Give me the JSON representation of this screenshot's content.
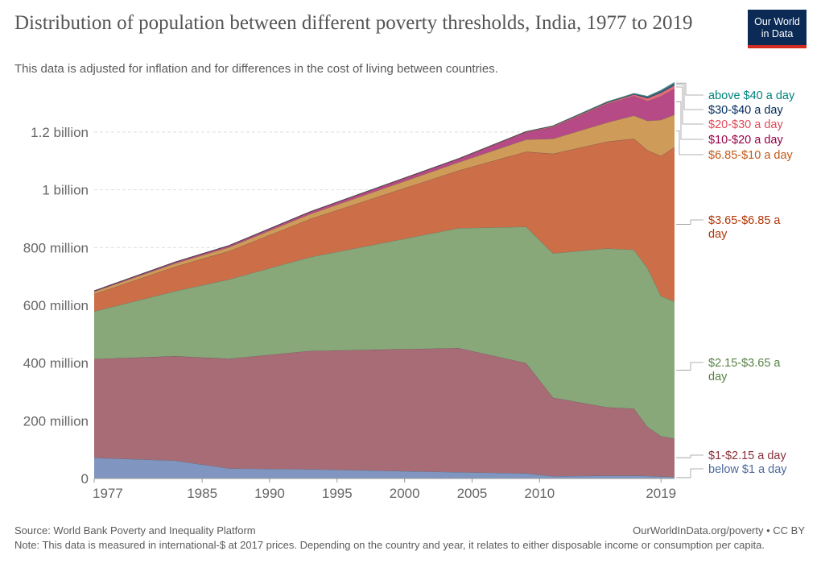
{
  "header": {
    "title": "Distribution of population between different poverty thresholds, India, 1977 to 2019",
    "subtitle": "This data is adjusted for inflation and for differences in the cost of living between countries.",
    "logo_line1": "Our World",
    "logo_line2": "in Data"
  },
  "footer": {
    "source": "Source: World Bank Poverty and Inequality Platform",
    "url": "OurWorldInData.org/poverty • CC BY",
    "note": "Note: This data is measured in international-$ at 2017 prices. Depending on the country and year, it relates to either disposable income or consumption per capita."
  },
  "chart_data": {
    "type": "area",
    "stacked": true,
    "x": [
      1977,
      1983,
      1987,
      1993,
      2004,
      2009,
      2011,
      2015,
      2017,
      2018,
      2019,
      2020
    ],
    "series": [
      {
        "name": "below $1 a day",
        "color": "#8096c0",
        "label_color": "#4c6a9c",
        "values": [
          72,
          62,
          35,
          32,
          22,
          18,
          8,
          10,
          10,
          9,
          7,
          6
        ]
      },
      {
        "name": "$1-$2.15 a day",
        "color": "#a86c76",
        "label_color": "#883039",
        "values": [
          342,
          362,
          380,
          410,
          430,
          382,
          272,
          237,
          232,
          170,
          140,
          132
        ]
      },
      {
        "name": "$2.15-$3.65 a day",
        "color": "#88a87a",
        "label_color": "#578145",
        "values": [
          165,
          225,
          275,
          325,
          415,
          472,
          500,
          550,
          550,
          550,
          485,
          475
        ]
      },
      {
        "name": "$3.65-$6.85 a day",
        "color": "#cc6e48",
        "label_color": "#b13507",
        "values": [
          60,
          85,
          98,
          132,
          200,
          260,
          345,
          370,
          385,
          408,
          485,
          535
        ]
      },
      {
        "name": "$6.85-$10 a day",
        "color": "#cf9b58",
        "label_color": "#c05917",
        "values": [
          8,
          11,
          13,
          17,
          28,
          42,
          52,
          66,
          80,
          102,
          125,
          112
        ]
      },
      {
        "name": "$10-$20 a day",
        "color": "#b64a86",
        "label_color": "#970046",
        "values": [
          3,
          5,
          6,
          8,
          12,
          25,
          40,
          64,
          68,
          68,
          82,
          90
        ]
      },
      {
        "name": "$20-$30 a day",
        "color": "#e36b7a",
        "label_color": "#e04b59",
        "values": [
          0,
          0,
          0,
          0,
          1,
          2,
          3,
          4,
          5,
          10,
          12,
          12
        ]
      },
      {
        "name": "$30-$40 a day",
        "color": "#2a4c7c",
        "label_color": "#00295b",
        "values": [
          0,
          0,
          0,
          0,
          0,
          1,
          1,
          2,
          2,
          4,
          5,
          5
        ]
      },
      {
        "name": "above $40 a day",
        "color": "#2c9d96",
        "label_color": "#00847e",
        "values": [
          0,
          0,
          0,
          0,
          0,
          0,
          1,
          2,
          2,
          3,
          4,
          5
        ]
      }
    ],
    "series_labels": [
      {
        "series": "above $40 a day",
        "lines": [
          "above $40 a day"
        ]
      },
      {
        "series": "$30-$40 a day",
        "lines": [
          "$30-$40 a day"
        ]
      },
      {
        "series": "$20-$30 a day",
        "lines": [
          "$20-$30 a day"
        ]
      },
      {
        "series": "$10-$20 a day",
        "lines": [
          "$10-$20 a day"
        ]
      },
      {
        "series": "$6.85-$10 a day",
        "lines": [
          "$6.85-$10 a day"
        ]
      },
      {
        "series": "$3.65-$6.85 a day",
        "lines": [
          "$3.65-$6.85 a",
          "day"
        ]
      },
      {
        "series": "$2.15-$3.65 a day",
        "lines": [
          "$2.15-$3.65 a",
          "day"
        ]
      },
      {
        "series": "$1-$2.15 a day",
        "lines": [
          "$1-$2.15 a day"
        ]
      },
      {
        "series": "below $1 a day",
        "lines": [
          "below $1 a day"
        ]
      }
    ],
    "y_ticks": [
      {
        "value": 0,
        "label": "0"
      },
      {
        "value": 200,
        "label": "200 million"
      },
      {
        "value": 400,
        "label": "400 million"
      },
      {
        "value": 600,
        "label": "600 million"
      },
      {
        "value": 800,
        "label": "800 million"
      },
      {
        "value": 1000,
        "label": "1 billion"
      },
      {
        "value": 1200,
        "label": "1.2 billion"
      }
    ],
    "x_ticks": [
      {
        "value": 1977,
        "label": "1977"
      },
      {
        "value": 1985,
        "label": "1985"
      },
      {
        "value": 1990,
        "label": "1990"
      },
      {
        "value": 1995,
        "label": "1995"
      },
      {
        "value": 2000,
        "label": "2000"
      },
      {
        "value": 2005,
        "label": "2005"
      },
      {
        "value": 2010,
        "label": "2010"
      },
      {
        "value": 2019,
        "label": "2019"
      }
    ],
    "xlim": [
      1977,
      2020
    ],
    "ylim": [
      0,
      1370
    ],
    "y_unit": "million people",
    "grid": "horizontal dashed",
    "legend": "right, inline labels"
  }
}
